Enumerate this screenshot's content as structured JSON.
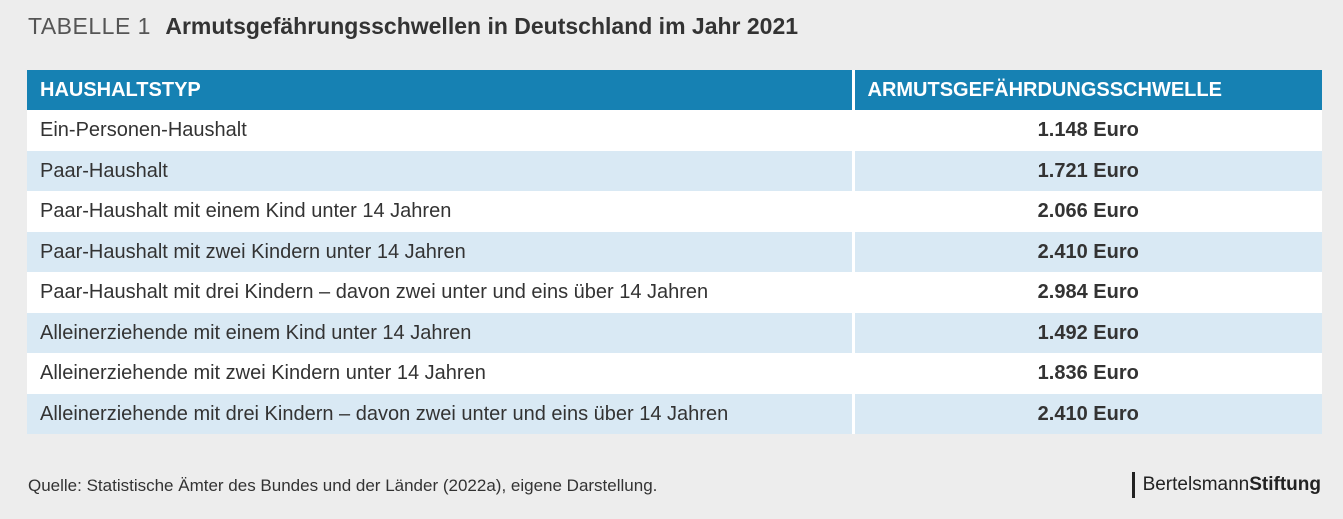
{
  "title": {
    "prefix": "TABELLE 1",
    "main": "Armutsgefährungsschwellen in Deutschland im Jahr 2021"
  },
  "chart_data": {
    "type": "table",
    "columns": [
      "HAUSHALTSTYP",
      "ARMUTSGEFÄHRDUNGSSCHWELLE"
    ],
    "rows": [
      [
        "Ein-Personen-Haushalt",
        "1.148 Euro"
      ],
      [
        "Paar-Haushalt",
        "1.721 Euro"
      ],
      [
        "Paar-Haushalt mit einem Kind unter 14 Jahren",
        "2.066 Euro"
      ],
      [
        "Paar-Haushalt mit zwei Kindern unter 14 Jahren",
        "2.410 Euro"
      ],
      [
        "Paar-Haushalt mit drei Kindern – davon zwei unter und eins über 14 Jahren",
        "2.984 Euro"
      ],
      [
        "Alleinerziehende mit einem Kind unter 14 Jahren",
        "1.492 Euro"
      ],
      [
        "Alleinerziehende mit zwei Kindern unter 14 Jahren",
        "1.836 Euro"
      ],
      [
        "Alleinerziehende mit drei Kindern – davon zwei unter und eins über 14 Jahren",
        "2.410 Euro"
      ]
    ]
  },
  "footer": {
    "source": "Quelle: Statistische Ämter des Bundes und der Länder (2022a), eigene Darstellung.",
    "brand_regular": "Bertelsmann",
    "brand_bold": "Stiftung"
  },
  "colors": {
    "header_bg": "#1681b3",
    "row_alt_bg": "#d9e9f4",
    "page_bg": "#ededed"
  }
}
